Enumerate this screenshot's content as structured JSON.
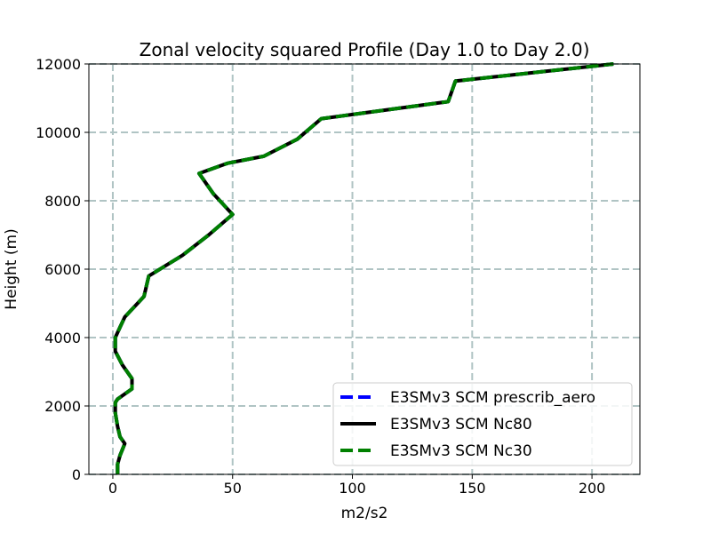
{
  "chart_data": {
    "type": "line",
    "title": "Zonal velocity squared Profile (Day 1.0 to Day 2.0)",
    "xlabel": "m2/s2",
    "ylabel": "Height (m)",
    "xlim": [
      -10,
      220
    ],
    "ylim": [
      0,
      12000
    ],
    "xticks": [
      0,
      50,
      100,
      150,
      200
    ],
    "yticks": [
      0,
      2000,
      4000,
      6000,
      8000,
      10000,
      12000
    ],
    "grid": true,
    "legend_position": "lower-right",
    "series": [
      {
        "name": "E3SMv3 SCM prescrib_aero",
        "color": "#0000ff",
        "style": "dashed",
        "x": [
          2,
          2,
          3,
          5,
          3,
          2,
          1,
          1,
          2,
          8,
          8,
          4,
          1,
          1,
          3,
          5,
          13,
          15,
          22,
          29,
          40,
          50,
          42,
          36,
          48,
          63,
          77,
          87,
          140,
          143,
          209
        ],
        "y": [
          0,
          300,
          550,
          900,
          1100,
          1400,
          1800,
          2100,
          2200,
          2500,
          2800,
          3200,
          3600,
          4000,
          4300,
          4600,
          5200,
          5800,
          6100,
          6400,
          7000,
          7600,
          8200,
          8800,
          9100,
          9300,
          9800,
          10400,
          10900,
          11500,
          12000
        ]
      },
      {
        "name": "E3SMv3 SCM Nc80",
        "color": "#000000",
        "style": "solid",
        "x": [
          2,
          2,
          3,
          5,
          3,
          2,
          1,
          1,
          2,
          8,
          8,
          4,
          1,
          1,
          3,
          5,
          13,
          15,
          22,
          29,
          40,
          50,
          42,
          36,
          48,
          63,
          77,
          87,
          140,
          143,
          209
        ],
        "y": [
          0,
          300,
          550,
          900,
          1100,
          1400,
          1800,
          2100,
          2200,
          2500,
          2800,
          3200,
          3600,
          4000,
          4300,
          4600,
          5200,
          5800,
          6100,
          6400,
          7000,
          7600,
          8200,
          8800,
          9100,
          9300,
          9800,
          10400,
          10900,
          11500,
          12000
        ]
      },
      {
        "name": "E3SMv3 SCM Nc30",
        "color": "#008000",
        "style": "dashed",
        "x": [
          2,
          2,
          3,
          5,
          3,
          2,
          1,
          1,
          2,
          8,
          8,
          4,
          1,
          1,
          3,
          5,
          13,
          15,
          22,
          29,
          40,
          50,
          42,
          36,
          48,
          63,
          77,
          87,
          140,
          143,
          209
        ],
        "y": [
          0,
          300,
          550,
          900,
          1100,
          1400,
          1800,
          2100,
          2200,
          2500,
          2800,
          3200,
          3600,
          4000,
          4300,
          4600,
          5200,
          5800,
          6100,
          6400,
          7000,
          7600,
          8200,
          8800,
          9100,
          9300,
          9800,
          10400,
          10900,
          11500,
          12000
        ]
      }
    ]
  }
}
